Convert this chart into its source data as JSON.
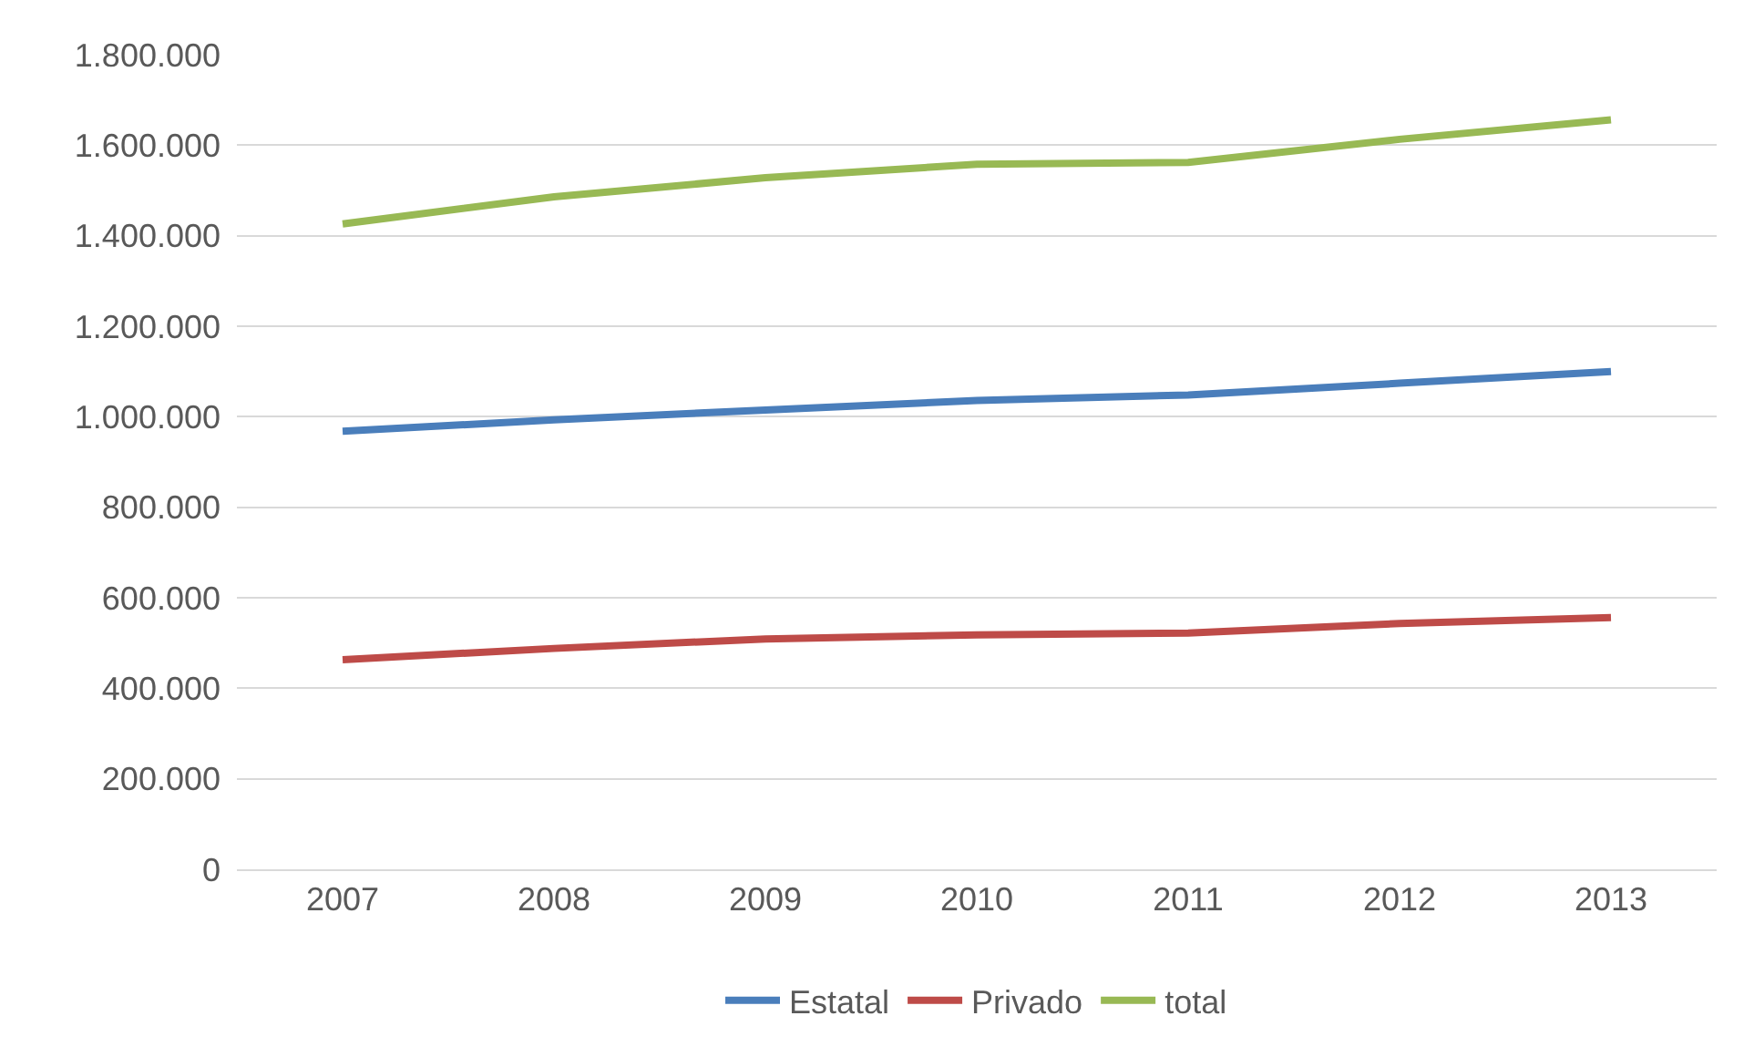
{
  "chart_data": {
    "type": "line",
    "categories": [
      "2007",
      "2008",
      "2009",
      "2010",
      "2011",
      "2012",
      "2013"
    ],
    "series": [
      {
        "name": "Estatal",
        "color": "#4a7ebb",
        "values": [
          968000,
          993000,
          1015000,
          1036000,
          1048000,
          1074000,
          1100000
        ]
      },
      {
        "name": "Privado",
        "color": "#be4b48",
        "values": [
          463000,
          488000,
          509000,
          518000,
          522000,
          543000,
          556000
        ]
      },
      {
        "name": "total",
        "color": "#98b954",
        "values": [
          1426000,
          1486000,
          1528000,
          1558000,
          1562000,
          1613000,
          1656000
        ]
      }
    ],
    "ylim": [
      0,
      1800000
    ],
    "yticks": [
      0,
      {
        "value": 200000,
        "label": "200.000"
      },
      {
        "value": 400000,
        "label": "400.000"
      },
      {
        "value": 600000,
        "label": "600.000"
      },
      {
        "value": 800000,
        "label": "800.000"
      },
      {
        "value": 1000000,
        "label": "1.000.000"
      },
      {
        "value": 1200000,
        "label": "1.200.000"
      },
      {
        "value": 1400000,
        "label": "1.400.000"
      },
      {
        "value": 1600000,
        "label": "1.600.000"
      },
      {
        "value": 1800000,
        "label": "1.800.000"
      }
    ],
    "grid": "y",
    "legend": "bottom",
    "marker": "none",
    "line_style": "solid"
  }
}
